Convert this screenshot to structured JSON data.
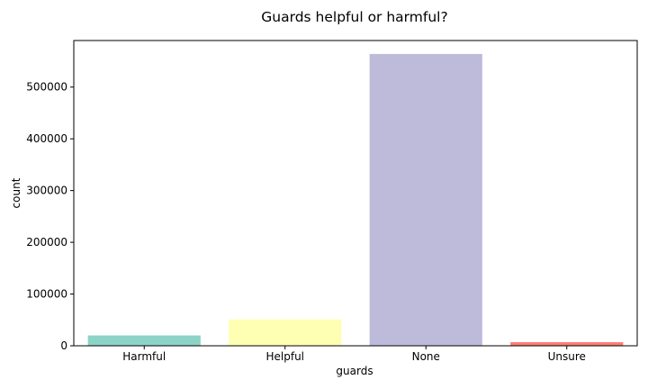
{
  "chart_data": {
    "type": "bar",
    "title": "Guards helpful or harmful?",
    "xlabel": "guards",
    "ylabel": "count",
    "categories": [
      "Harmful",
      "Helpful",
      "None",
      "Unsure"
    ],
    "values": [
      20000,
      51000,
      564000,
      7000
    ],
    "colors": [
      "#8dd3c7",
      "#ffffb3",
      "#bebada",
      "#fb8072"
    ],
    "ylim": [
      0,
      590000
    ],
    "yticks": [
      0,
      100000,
      200000,
      300000,
      400000,
      500000
    ],
    "ytick_labels": [
      "0",
      "100000",
      "200000",
      "300000",
      "400000",
      "500000"
    ],
    "grid": false,
    "legend": "none"
  }
}
